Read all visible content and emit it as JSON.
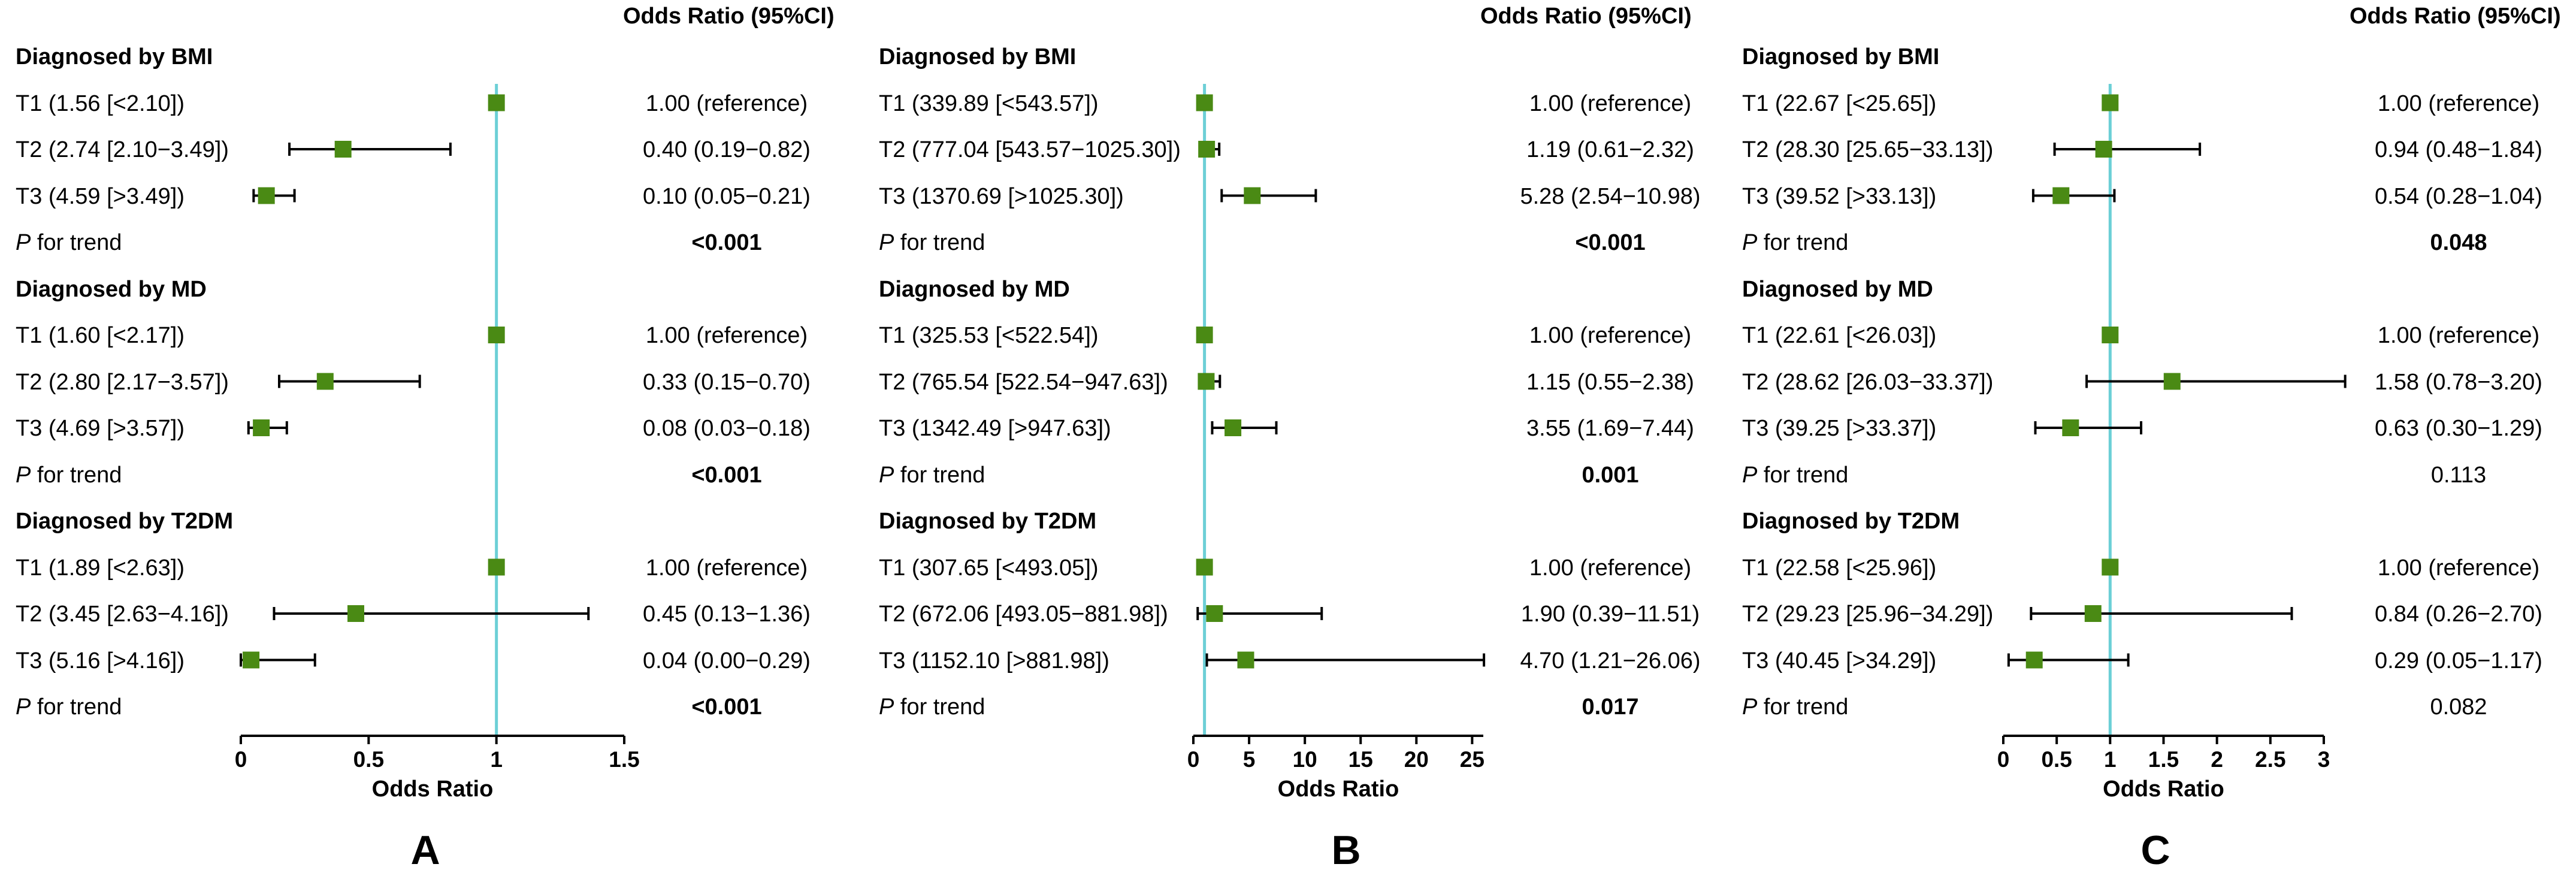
{
  "colors": {
    "marker": "#4a8a14",
    "reference_line": "#6ccfd6",
    "ci_line": "#000000"
  },
  "chart_data": [
    {
      "type": "forest",
      "panel_label": "A",
      "ci_header": "Odds Ratio (95%CI)",
      "xlabel": "Odds Ratio",
      "xlim": [
        0,
        1.5
      ],
      "ticks": [
        "0",
        "0.5",
        "1",
        "1.5"
      ],
      "tick_values": [
        0,
        0.5,
        1,
        1.5
      ],
      "reference": 1,
      "groups": [
        {
          "title": "Diagnosed by BMI",
          "rows": [
            {
              "label": "T1 (1.56 [<2.10])",
              "or": 1.0,
              "lo": null,
              "hi": null,
              "text": "1.00 (reference)"
            },
            {
              "label": "T2 (2.74 [2.10−3.49])",
              "or": 0.4,
              "lo": 0.19,
              "hi": 0.82,
              "text": "0.40 (0.19−0.82)"
            },
            {
              "label": "T3 (4.59 [>3.49])",
              "or": 0.1,
              "lo": 0.05,
              "hi": 0.21,
              "text": "0.10 (0.05−0.21)"
            }
          ],
          "p_label": "P",
          "p_suffix": " for trend",
          "p_value": "<0.001",
          "p_bold": true
        },
        {
          "title": "Diagnosed by MD",
          "rows": [
            {
              "label": "T1 (1.60 [<2.17])",
              "or": 1.0,
              "lo": null,
              "hi": null,
              "text": "1.00 (reference)"
            },
            {
              "label": "T2 (2.80 [2.17−3.57])",
              "or": 0.33,
              "lo": 0.15,
              "hi": 0.7,
              "text": "0.33 (0.15−0.70)"
            },
            {
              "label": "T3 (4.69 [>3.57])",
              "or": 0.08,
              "lo": 0.03,
              "hi": 0.18,
              "text": "0.08 (0.03−0.18)"
            }
          ],
          "p_label": "P",
          "p_suffix": " for trend",
          "p_value": "<0.001",
          "p_bold": true
        },
        {
          "title": "Diagnosed by T2DM",
          "rows": [
            {
              "label": "T1 (1.89 [<2.63])",
              "or": 1.0,
              "lo": null,
              "hi": null,
              "text": "1.00 (reference)"
            },
            {
              "label": "T2 (3.45 [2.63−4.16])",
              "or": 0.45,
              "lo": 0.13,
              "hi": 1.36,
              "text": "0.45 (0.13−1.36)"
            },
            {
              "label": "T3 (5.16 [>4.16])",
              "or": 0.04,
              "lo": 0.0,
              "hi": 0.29,
              "text": "0.04 (0.00−0.29)"
            }
          ],
          "p_label": "P",
          "p_suffix": " for trend",
          "p_value": "<0.001",
          "p_bold": true
        }
      ]
    },
    {
      "type": "forest",
      "panel_label": "B",
      "ci_header": "Odds Ratio (95%CI)",
      "xlabel": "Odds Ratio",
      "xlim": [
        0,
        26
      ],
      "ticks": [
        "0",
        "5",
        "10",
        "15",
        "20",
        "25"
      ],
      "tick_values": [
        0,
        5,
        10,
        15,
        20,
        25
      ],
      "reference": 1,
      "groups": [
        {
          "title": "Diagnosed by BMI",
          "rows": [
            {
              "label": "T1 (339.89 [<543.57])",
              "or": 1.0,
              "lo": null,
              "hi": null,
              "text": "1.00 (reference)"
            },
            {
              "label": "T2 (777.04 [543.57−1025.30])",
              "or": 1.19,
              "lo": 0.61,
              "hi": 2.32,
              "text": "1.19 (0.61−2.32)"
            },
            {
              "label": "T3 (1370.69 [>1025.30])",
              "or": 5.28,
              "lo": 2.54,
              "hi": 10.98,
              "text": "5.28 (2.54−10.98)"
            }
          ],
          "p_label": "P",
          "p_suffix": " for trend",
          "p_value": "<0.001",
          "p_bold": true
        },
        {
          "title": "Diagnosed by MD",
          "rows": [
            {
              "label": "T1 (325.53 [<522.54])",
              "or": 1.0,
              "lo": null,
              "hi": null,
              "text": "1.00 (reference)"
            },
            {
              "label": "T2 (765.54 [522.54−947.63])",
              "or": 1.15,
              "lo": 0.55,
              "hi": 2.38,
              "text": "1.15 (0.55−2.38)"
            },
            {
              "label": "T3 (1342.49 [>947.63])",
              "or": 3.55,
              "lo": 1.69,
              "hi": 7.44,
              "text": "3.55 (1.69−7.44)"
            }
          ],
          "p_label": "P",
          "p_suffix": " for trend",
          "p_value": "0.001",
          "p_bold": true
        },
        {
          "title": "Diagnosed by T2DM",
          "rows": [
            {
              "label": "T1 (307.65 [<493.05])",
              "or": 1.0,
              "lo": null,
              "hi": null,
              "text": "1.00 (reference)"
            },
            {
              "label": "T2 (672.06 [493.05−881.98])",
              "or": 1.9,
              "lo": 0.39,
              "hi": 11.51,
              "text": "1.90 (0.39−11.51)"
            },
            {
              "label": "T3 (1152.10 [>881.98])",
              "or": 4.7,
              "lo": 1.21,
              "hi": 26.06,
              "text": "4.70 (1.21−26.06)"
            }
          ],
          "p_label": "P",
          "p_suffix": " for trend",
          "p_value": "0.017",
          "p_bold": true
        }
      ]
    },
    {
      "type": "forest",
      "panel_label": "C",
      "ci_header": "Odds Ratio (95%CI)",
      "xlabel": "Odds Ratio",
      "xlim": [
        0,
        3
      ],
      "ticks": [
        "0",
        "0.5",
        "1",
        "1.5",
        "2",
        "2.5",
        "3"
      ],
      "tick_values": [
        0,
        0.5,
        1,
        1.5,
        2,
        2.5,
        3
      ],
      "reference": 1,
      "groups": [
        {
          "title": "Diagnosed by BMI",
          "rows": [
            {
              "label": "T1 (22.67 [<25.65])",
              "or": 1.0,
              "lo": null,
              "hi": null,
              "text": "1.00 (reference)"
            },
            {
              "label": "T2 (28.30 [25.65−33.13])",
              "or": 0.94,
              "lo": 0.48,
              "hi": 1.84,
              "text": "0.94 (0.48−1.84)"
            },
            {
              "label": "T3 (39.52 [>33.13])",
              "or": 0.54,
              "lo": 0.28,
              "hi": 1.04,
              "text": "0.54 (0.28−1.04)"
            }
          ],
          "p_label": "P",
          "p_suffix": " for trend",
          "p_value": "0.048",
          "p_bold": true
        },
        {
          "title": "Diagnosed by MD",
          "rows": [
            {
              "label": "T1 (22.61 [<26.03])",
              "or": 1.0,
              "lo": null,
              "hi": null,
              "text": "1.00 (reference)"
            },
            {
              "label": "T2 (28.62 [26.03−33.37])",
              "or": 1.58,
              "lo": 0.78,
              "hi": 3.2,
              "text": "1.58 (0.78−3.20)"
            },
            {
              "label": "T3 (39.25 [>33.37])",
              "or": 0.63,
              "lo": 0.3,
              "hi": 1.29,
              "text": "0.63 (0.30−1.29)"
            }
          ],
          "p_label": "P",
          "p_suffix": " for trend",
          "p_value": "0.113",
          "p_bold": false
        },
        {
          "title": "Diagnosed by T2DM",
          "rows": [
            {
              "label": "T1 (22.58 [<25.96])",
              "or": 1.0,
              "lo": null,
              "hi": null,
              "text": "1.00 (reference)"
            },
            {
              "label": "T2 (29.23 [25.96−34.29])",
              "or": 0.84,
              "lo": 0.26,
              "hi": 2.7,
              "text": "0.84 (0.26−2.70)"
            },
            {
              "label": "T3 (40.45 [>34.29])",
              "or": 0.29,
              "lo": 0.05,
              "hi": 1.17,
              "text": "0.29 (0.05−1.17)"
            }
          ],
          "p_label": "P",
          "p_suffix": " for trend",
          "p_value": "0.082",
          "p_bold": false
        }
      ]
    }
  ]
}
